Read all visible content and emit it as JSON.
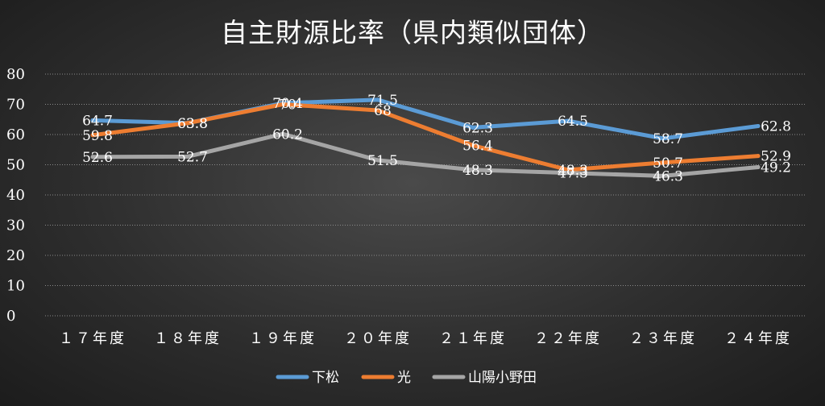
{
  "chart_data": {
    "type": "line",
    "title": "自主財源比率（県内類似団体）",
    "xlabel": "",
    "ylabel": "",
    "categories": [
      "１７年度",
      "１８年度",
      "１９年度",
      "２０年度",
      "２１年度",
      "２２年度",
      "２３年度",
      "２４年度"
    ],
    "ylim": [
      0,
      80
    ],
    "yticks": [
      0,
      10,
      20,
      30,
      40,
      50,
      60,
      70,
      80
    ],
    "grid": true,
    "legend_position": "bottom",
    "series": [
      {
        "name": "下松",
        "color": "#5b9bd5",
        "values": [
          64.7,
          63.8,
          70.4,
          71.5,
          62.3,
          64.5,
          58.7,
          62.8
        ],
        "labels": [
          "64.7",
          "63.8",
          "70.4",
          "71.5",
          "62.3",
          "64.5",
          "58.7",
          "62.8"
        ]
      },
      {
        "name": "光",
        "color": "#ed7d31",
        "values": [
          59.8,
          63.8,
          70,
          68,
          56.4,
          48.3,
          50.7,
          52.9
        ],
        "labels": [
          "59.8",
          "63.8",
          "70",
          "68",
          "56.4",
          "48.3",
          "50.7",
          "52.9"
        ]
      },
      {
        "name": "山陽小野田",
        "color": "#a5a5a5",
        "values": [
          52.6,
          52.7,
          60.2,
          51.5,
          48.3,
          47.3,
          46.3,
          49.2
        ],
        "labels": [
          "52.6",
          "52.7",
          "60.2",
          "51.5",
          "48.3",
          "47.3",
          "46.3",
          "49.2"
        ]
      }
    ]
  }
}
